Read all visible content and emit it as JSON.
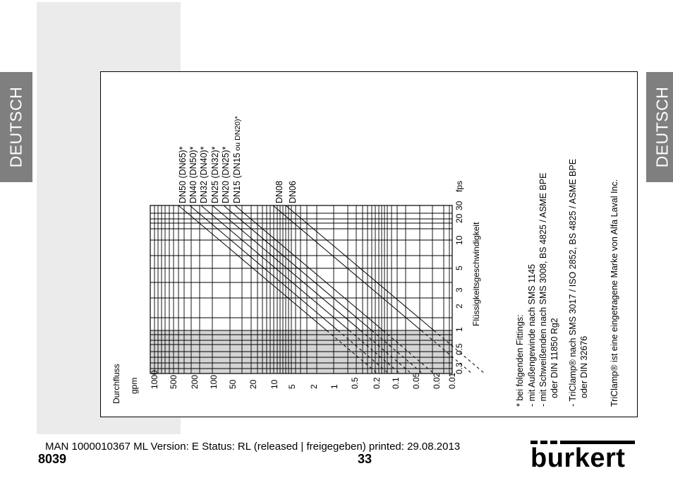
{
  "side_tab_left": "DEUTSCH",
  "side_tab_right": "DEUTSCH",
  "diagram": {
    "flow_title": "Durchfluss",
    "flow_unit": "gpm",
    "flow_ticks": [
      "1000",
      "500",
      "200",
      "100",
      "50",
      "20",
      "10",
      "5",
      "2",
      "1",
      "0.5",
      "0.2",
      "0.1",
      "0.05",
      "0.02",
      "0.01"
    ],
    "velocity_ticks": [
      "0.3",
      "0.5",
      "1",
      "2",
      "3",
      "5",
      "10",
      "20",
      "30"
    ],
    "velocity_unit": "fps",
    "velocity_label": "Flüssigkeitsgeschwindigkeit",
    "pipe_labels": [
      "DN50 (DN65)*",
      "DN40 (DN50)*",
      "DN32 (DN40)*",
      "DN25 (DN32)*",
      "DN20 (DN25)*",
      "DN15 (DN15",
      "ou DN20)*",
      "DN08",
      "DN06"
    ]
  },
  "notes": {
    "fittings": [
      "* bei folgenden Fittings:",
      "-  mit Außengewinde nach SMS 1145",
      "-  mit Schweißenden nach SMS 3008, BS 4825 / ASME BPE",
      "oder DIN 11850 Rg2",
      "-  TriClamp® nach SMS 3017 / ISO 2852, BS 4825 / ASME BPE",
      "oder DIN 32676"
    ],
    "trademark": "TriClamp® ist eine eingetragene Marke von Alfa Laval Inc."
  },
  "footer": {
    "status_line": "MAN  1000010367  ML  Version: E Status: RL (released | freigegeben)  printed: 29.08.2013",
    "model": "8039",
    "page_number": "33",
    "logo": "burkert"
  }
}
